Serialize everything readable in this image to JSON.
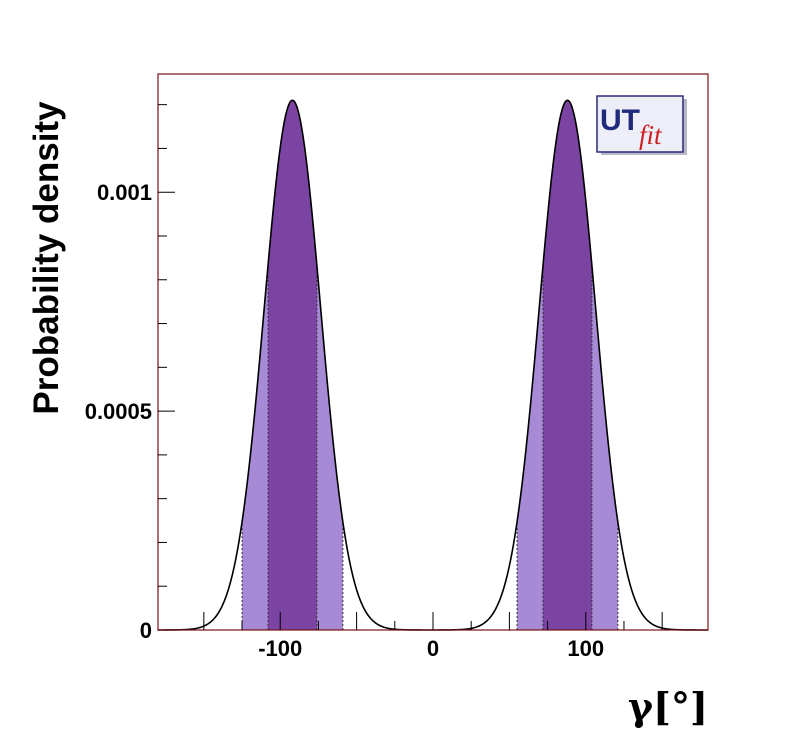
{
  "chart_data": {
    "type": "area",
    "title": "",
    "xlabel": "γ[°]",
    "ylabel": "Probability density",
    "xlim": [
      -180,
      180
    ],
    "ylim": [
      0,
      0.00127
    ],
    "x_ticks": [
      {
        "value": -100,
        "label": "-100"
      },
      {
        "value": 0,
        "label": "0"
      },
      {
        "value": 100,
        "label": "100"
      }
    ],
    "y_ticks": [
      {
        "value": 0,
        "label": "0"
      },
      {
        "value": 0.0005,
        "label": "0.0005"
      },
      {
        "value": 0.001,
        "label": "0.001"
      }
    ],
    "peaks": [
      {
        "mean": -92,
        "sigma": 18.5,
        "height": 0.00121,
        "inner_interval": [
          -108,
          -76
        ],
        "outer_interval": [
          -125,
          -59
        ]
      },
      {
        "mean": 88,
        "sigma": 18.5,
        "height": 0.00121,
        "inner_interval": [
          72,
          104
        ],
        "outer_interval": [
          55,
          121
        ]
      }
    ],
    "grid": false,
    "colors": {
      "inner_band": "#7b44a3",
      "outer_band": "#a78ad6",
      "curve": "#000000",
      "frame": "#7a1010"
    },
    "logo": {
      "part1": "UT",
      "part2": "fit"
    }
  }
}
